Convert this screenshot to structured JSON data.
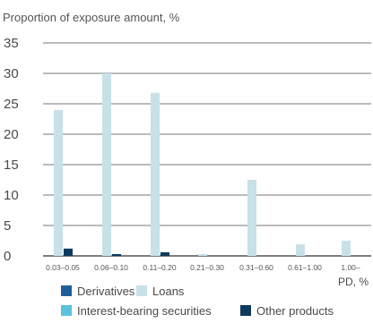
{
  "chart_data": {
    "type": "bar",
    "ylabel": "Proportion of exposure amount, %",
    "xlabel": "PD, %",
    "categories": [
      "0.03–0.05",
      "0.06–0.10",
      "0.11–0.20",
      "0.21–0.30",
      "0.31–0.60",
      "0.61–1.00",
      "1.00–"
    ],
    "ylim": [
      0,
      35
    ],
    "yticks": [
      0,
      5,
      10,
      15,
      20,
      25,
      30,
      35
    ],
    "grid": true,
    "legend_position": "bottom",
    "series": [
      {
        "name": "Derivatives",
        "color": "#1f5f99",
        "values": [
          0,
          0,
          0,
          0,
          0,
          0,
          0
        ]
      },
      {
        "name": "Loans",
        "color": "#c8e0e8",
        "values": [
          24,
          30,
          26.8,
          0.3,
          12.5,
          1.9,
          2.5
        ]
      },
      {
        "name": "Interest-bearing securities",
        "color": "#5bc3df",
        "values": [
          0,
          0,
          0,
          0,
          0,
          0,
          0
        ]
      },
      {
        "name": "Other products",
        "color": "#0d3a5c",
        "values": [
          1.2,
          0.3,
          0.6,
          0,
          0,
          0,
          0
        ]
      }
    ],
    "legend_order": [
      0,
      1,
      2,
      3
    ]
  }
}
